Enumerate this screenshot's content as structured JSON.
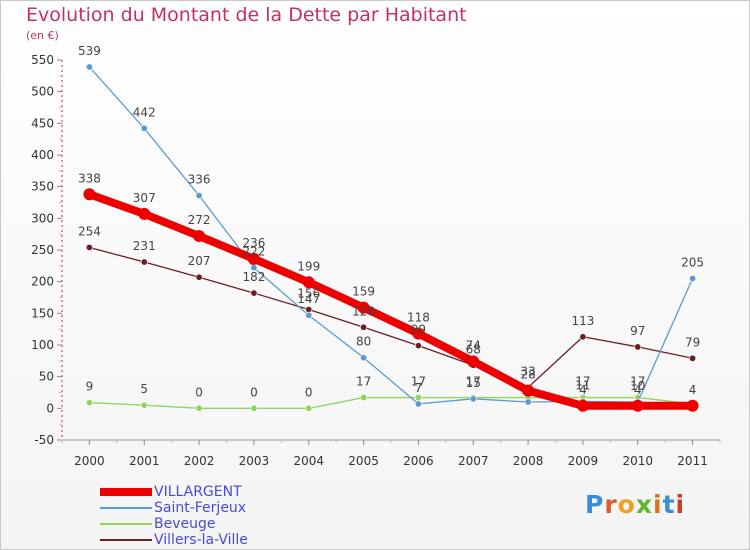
{
  "title": "Evolution du Montant de la Dette par Habitant",
  "subtitle": "(en €)",
  "logo": {
    "text": "Proxiti",
    "letter_colors": [
      "#3a8ed8",
      "#e05a2a",
      "#f0a020",
      "#5cb82c",
      "#e07020",
      "#3a8ed8",
      "#d23c2a"
    ]
  },
  "chart_data": {
    "type": "line",
    "x": [
      2000,
      2001,
      2002,
      2003,
      2004,
      2005,
      2006,
      2007,
      2008,
      2009,
      2010,
      2011
    ],
    "ylim": [
      -50,
      550
    ],
    "yticks": [
      -50,
      0,
      50,
      100,
      150,
      200,
      250,
      300,
      350,
      400,
      450,
      500,
      550
    ],
    "grid": false,
    "legend_position": "bottom-left",
    "series": [
      {
        "name": "Villers-la-Ville",
        "color": "#6b1d24",
        "values": [
          254,
          231,
          207,
          182,
          156,
          128,
          99,
          68,
          33,
          113,
          97,
          79
        ],
        "labels": [
          "254",
          "231",
          "207",
          "182",
          "156",
          "128",
          "99",
          "68",
          "33",
          "113",
          "97",
          "79"
        ]
      },
      {
        "name": "Beveuge",
        "color": "#8fd45c",
        "values": [
          9,
          5,
          0,
          0,
          0,
          17,
          17,
          17,
          17,
          17,
          17,
          7
        ],
        "labels": [
          "9",
          "5",
          "0",
          "0",
          "0",
          "17",
          "17",
          "17",
          "",
          "17",
          "17",
          ""
        ]
      },
      {
        "name": "Saint-Ferjeux",
        "color": "#5a9ad0",
        "values": [
          539,
          442,
          336,
          222,
          147,
          80,
          7,
          15,
          10,
          11,
          10,
          205
        ],
        "labels": [
          "539",
          "442",
          "336",
          "222",
          "147",
          "80",
          "7",
          "15",
          "",
          "11",
          "10",
          "205"
        ]
      },
      {
        "name": "VILLARGENT",
        "color": "#ee0000",
        "values": [
          338,
          307,
          272,
          236,
          199,
          159,
          118,
          74,
          28,
          4,
          4,
          4
        ],
        "labels": [
          "338",
          "307",
          "272",
          "236",
          "199",
          "159",
          "118",
          "74",
          "28",
          "4",
          "4",
          "4"
        ]
      }
    ]
  },
  "legend": {
    "items": [
      {
        "label": "VILLARGENT",
        "color": "#ee0000"
      },
      {
        "label": "Saint-Ferjeux",
        "color": "#5a9ad0"
      },
      {
        "label": "Beveuge",
        "color": "#8fd45c"
      },
      {
        "label": "Villers-la-Ville",
        "color": "#6b1d24"
      }
    ]
  }
}
